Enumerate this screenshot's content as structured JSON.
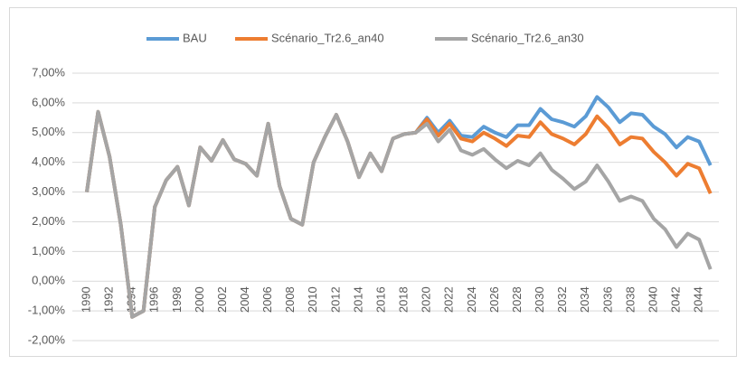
{
  "chart_data": {
    "type": "line",
    "categories": [
      "1990",
      null,
      "1992",
      null,
      "1994",
      null,
      "1996",
      null,
      "1998",
      null,
      "2000",
      null,
      "2002",
      null,
      "2004",
      null,
      "2006",
      null,
      "2008",
      null,
      "2010",
      null,
      "2012",
      null,
      "2014",
      null,
      "2016",
      null,
      "2018",
      null,
      "2020",
      null,
      "2022",
      null,
      "2024",
      null,
      "2026",
      null,
      "2028",
      null,
      "2030",
      null,
      "2032",
      null,
      "2034",
      null,
      "2036",
      null,
      "2038",
      null,
      "2040",
      null,
      "2042",
      null,
      "2044",
      null
    ],
    "series": [
      {
        "name": "BAU",
        "color": "#5b9bd5",
        "values": [
          3.0,
          5.7,
          4.2,
          1.9,
          -1.2,
          -1.0,
          2.5,
          3.4,
          3.85,
          2.55,
          4.5,
          4.05,
          4.75,
          4.1,
          3.95,
          3.55,
          5.3,
          3.2,
          2.1,
          1.9,
          4.0,
          4.85,
          5.6,
          4.7,
          3.5,
          4.3,
          3.7,
          4.8,
          4.95,
          5.0,
          5.5,
          5.0,
          5.4,
          4.9,
          4.85,
          5.2,
          5.0,
          4.85,
          5.25,
          5.25,
          5.8,
          5.45,
          5.35,
          5.2,
          5.55,
          6.2,
          5.85,
          5.35,
          5.65,
          5.6,
          5.2,
          4.95,
          4.5,
          4.85,
          4.7,
          3.9
        ]
      },
      {
        "name": "Scénario_Tr2.6_an40",
        "color": "#ed7d31",
        "values": [
          3.0,
          5.7,
          4.2,
          1.9,
          -1.2,
          -1.0,
          2.5,
          3.4,
          3.85,
          2.55,
          4.5,
          4.05,
          4.75,
          4.1,
          3.95,
          3.55,
          5.3,
          3.2,
          2.1,
          1.9,
          4.0,
          4.85,
          5.6,
          4.7,
          3.5,
          4.3,
          3.7,
          4.8,
          4.95,
          5.0,
          5.45,
          4.9,
          5.3,
          4.8,
          4.7,
          5.0,
          4.8,
          4.55,
          4.9,
          4.85,
          5.35,
          4.95,
          4.8,
          4.6,
          4.95,
          5.55,
          5.15,
          4.6,
          4.85,
          4.8,
          4.35,
          4.0,
          3.55,
          3.95,
          3.8,
          2.95
        ]
      },
      {
        "name": "Scénario_Tr2.6_an30",
        "color": "#a5a5a5",
        "values": [
          3.0,
          5.7,
          4.2,
          1.9,
          -1.2,
          -1.0,
          2.5,
          3.4,
          3.85,
          2.55,
          4.5,
          4.05,
          4.75,
          4.1,
          3.95,
          3.55,
          5.3,
          3.2,
          2.1,
          1.9,
          4.0,
          4.85,
          5.6,
          4.7,
          3.5,
          4.3,
          3.7,
          4.8,
          4.95,
          5.0,
          5.3,
          4.7,
          5.1,
          4.4,
          4.25,
          4.45,
          4.1,
          3.8,
          4.05,
          3.9,
          4.3,
          3.75,
          3.45,
          3.1,
          3.35,
          3.9,
          3.35,
          2.7,
          2.85,
          2.7,
          2.1,
          1.75,
          1.15,
          1.6,
          1.4,
          0.4
        ]
      }
    ],
    "ylim": [
      -2,
      7
    ],
    "yticks": [
      {
        "value": -2,
        "label": "-2,00%"
      },
      {
        "value": -1,
        "label": "-1,00%"
      },
      {
        "value": 0,
        "label": "0,00%"
      },
      {
        "value": 1,
        "label": "1,00%"
      },
      {
        "value": 2,
        "label": "2,00%"
      },
      {
        "value": 3,
        "label": "3,00%"
      },
      {
        "value": 4,
        "label": "4,00%"
      },
      {
        "value": 5,
        "label": "5,00%"
      },
      {
        "value": 6,
        "label": "6,00%"
      },
      {
        "value": 7,
        "label": "7,00%"
      }
    ],
    "grid": true,
    "legend": "top"
  }
}
